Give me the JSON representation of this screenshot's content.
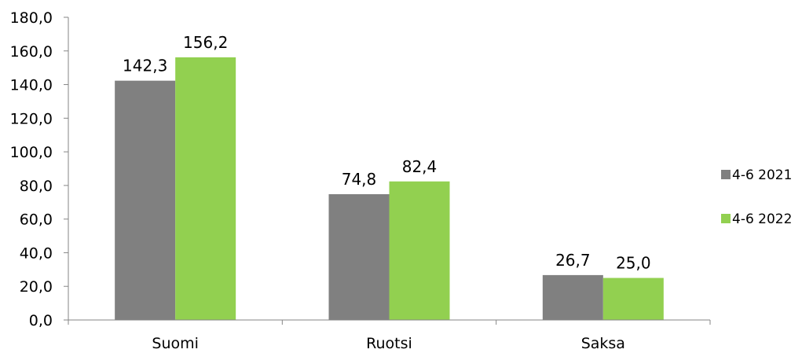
{
  "chart_data": {
    "type": "bar",
    "categories": [
      "Suomi",
      "Ruotsi",
      "Saksa"
    ],
    "series": [
      {
        "name": "4-6 2021",
        "values": [
          142.3,
          74.8,
          26.7
        ],
        "color": "#808080"
      },
      {
        "name": "4-6 2022",
        "values": [
          156.2,
          82.4,
          25.0
        ],
        "color": "#92D050"
      }
    ],
    "ylim": [
      0,
      180
    ],
    "ytick_step": 20,
    "tick_labels": [
      "0,0",
      "20,0",
      "40,0",
      "60,0",
      "80,0",
      "100,0",
      "120,0",
      "140,0",
      "160,0",
      "180,0"
    ],
    "data_labels": [
      [
        "142,3",
        "74,8",
        "26,7"
      ],
      [
        "156,2",
        "82,4",
        "25,0"
      ]
    ],
    "legend_position": "right",
    "grid": false
  }
}
